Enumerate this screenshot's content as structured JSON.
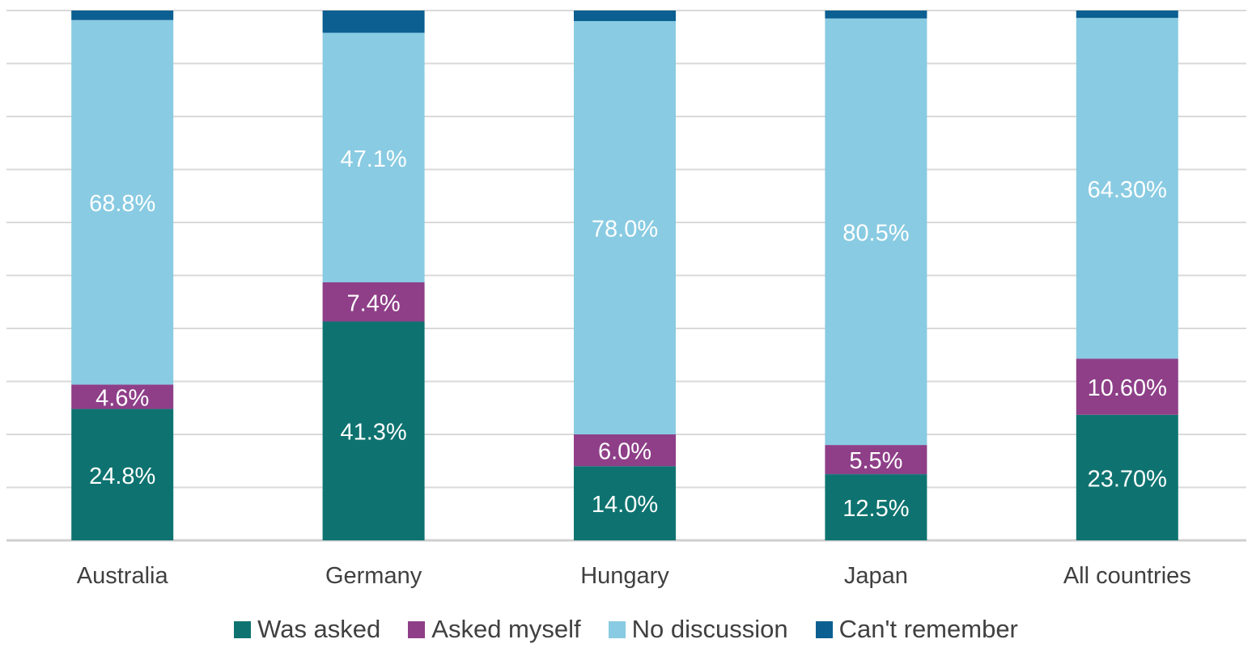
{
  "chart_data": {
    "type": "bar",
    "stacked": true,
    "title": "",
    "xlabel": "",
    "ylabel": "",
    "ylim": [
      0,
      100
    ],
    "grid": true,
    "legend_position": "bottom",
    "categories": [
      "Australia",
      "Germany",
      "Hungary",
      "Japan",
      "All countries"
    ],
    "series": [
      {
        "name": "Was asked",
        "color": "#0e7370",
        "values": [
          24.8,
          41.3,
          14.0,
          12.5,
          23.7
        ],
        "labels": [
          "24.8%",
          "41.3%",
          "14.0%",
          "12.5%",
          "23.70%"
        ]
      },
      {
        "name": "Asked myself",
        "color": "#8e3f88",
        "values": [
          4.6,
          7.4,
          6.0,
          5.5,
          10.6
        ],
        "labels": [
          "4.6%",
          "7.4%",
          "6.0%",
          "5.5%",
          "10.60%"
        ]
      },
      {
        "name": "No discussion",
        "color": "#89cbe2",
        "values": [
          68.8,
          47.1,
          78.0,
          80.5,
          64.3
        ],
        "labels": [
          "68.8%",
          "47.1%",
          "78.0%",
          "80.5%",
          "64.30%"
        ]
      },
      {
        "name": "Can't remember",
        "color": "#0b5f91",
        "values": [
          1.8,
          4.2,
          2.0,
          1.5,
          1.4
        ],
        "labels": [
          "",
          "",
          "",
          "",
          ""
        ]
      }
    ]
  }
}
